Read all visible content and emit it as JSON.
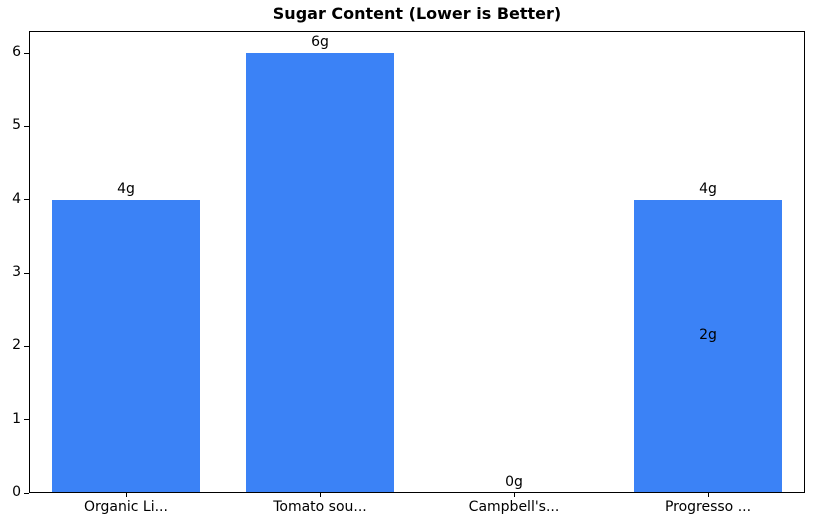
{
  "chart_data": {
    "type": "bar",
    "title": "Sugar Content (Lower is Better)",
    "categories": [
      "Organic Li...",
      "Tomato sou...",
      "Campbell's...",
      "Progresso ..."
    ],
    "values": [
      4,
      6,
      0,
      4
    ],
    "bar_labels": [
      "4g",
      "6g",
      "0g",
      "4g"
    ],
    "overlay_labels": [
      {
        "category_index": 3,
        "value": 2,
        "label": "2g"
      }
    ],
    "yticks": [
      0,
      1,
      2,
      3,
      4,
      5,
      6
    ],
    "ylim": [
      0,
      6.3
    ],
    "xlabel": "",
    "ylabel": "",
    "grid": false,
    "legend": null,
    "bar_color": "#3b82f6",
    "axis_color": "#000000",
    "text_color": "#000000"
  }
}
